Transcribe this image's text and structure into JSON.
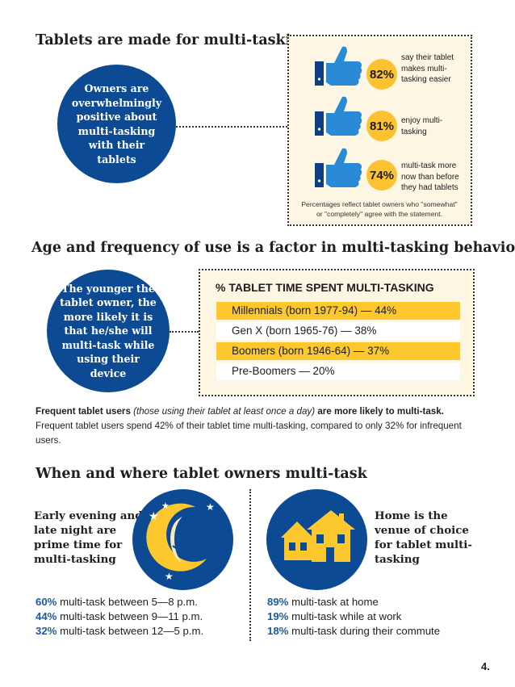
{
  "section1": {
    "title": "Tablets are made for multi-tasking",
    "circle_text": "Owners are overwhelmingly positive about multi-tasking with their tablets",
    "stats": [
      {
        "pct": "82%",
        "desc": "say their tablet makes multi-tasking easier"
      },
      {
        "pct": "81%",
        "desc": "enjoy multi-tasking"
      },
      {
        "pct": "74%",
        "desc": "multi-task more now than before they had tablets"
      }
    ],
    "footnote": "Percentages reflect tablet owners who \"somewhat\" or \"completely\" agree with the statement."
  },
  "section2": {
    "title": "Age and frequency of use is a factor in multi-tasking behavior",
    "circle_text": "The younger the tablet owner, the more likely it is that he/she will multi-task while using their device",
    "box_title": "% TABLET TIME SPENT MULTI-TASKING",
    "rows": [
      "Millennials (born 1977-94) — 44%",
      "Gen X (born 1965-76) — 38%",
      "Boomers (born 1946-64) — 37%",
      "Pre-Boomers — 20%"
    ],
    "freq_bold1": "Frequent tablet users",
    "freq_italic": "(those using their tablet at least once a day)",
    "freq_bold2": "are more likely to multi-task.",
    "freq_body": "Frequent tablet users spend 42% of their tablet time multi-tasking, compared to only 32% for infrequent users."
  },
  "section3": {
    "title": "When and where tablet owners multi-task",
    "left_title": "Early evening and late night are prime time for multi-tasking",
    "right_title": "Home is the venue of choice for tablet multi-tasking",
    "left_stats": [
      {
        "pct": "60%",
        "text": "multi-task between 5—8 p.m."
      },
      {
        "pct": "44%",
        "text": "multi-task between 9—11 p.m."
      },
      {
        "pct": "32%",
        "text": "multi-task between 12—5 p.m."
      }
    ],
    "right_stats": [
      {
        "pct": "89%",
        "text": "multi-task at home"
      },
      {
        "pct": "19%",
        "text": "multi-task while at work"
      },
      {
        "pct": "18%",
        "text": "multi-task during their commute"
      }
    ]
  },
  "page_number": "4.",
  "colors": {
    "navy": "#0c4a94",
    "gold": "#fcc82e",
    "blue_thumb": "#2b8ad6",
    "cream": "#fcf6e2"
  },
  "icons": [
    "thumbs-up-icon",
    "moon-icon",
    "star-icon",
    "house-icon"
  ]
}
